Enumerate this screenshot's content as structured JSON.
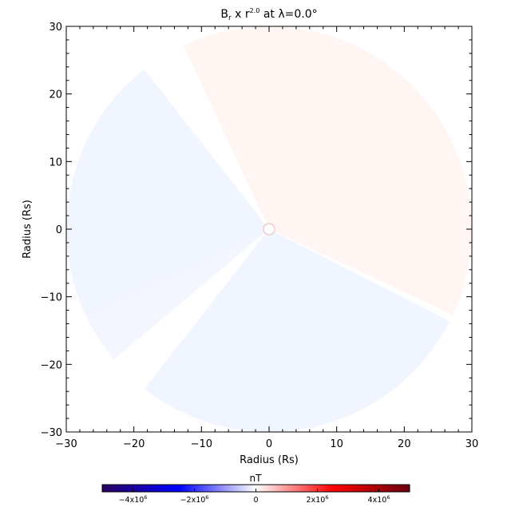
{
  "chart_data": {
    "type": "heatmap",
    "title": {
      "base": "B",
      "sub": "r",
      "mid": " x r",
      "sup": "2.0",
      "tail": " at λ=0.0°"
    },
    "xlabel": "Radius (Rs)",
    "ylabel": "Radius (Rs)",
    "xlim": [
      -30,
      30
    ],
    "ylim": [
      -30,
      30
    ],
    "xticks": [
      -30,
      -20,
      -10,
      0,
      10,
      20,
      30
    ],
    "yticks": [
      -30,
      -20,
      -10,
      0,
      10,
      20,
      30
    ],
    "grid": false,
    "data_radius": 30,
    "sectors": [
      {
        "name": "positive-sector",
        "start_deg": -25,
        "end_deg": 115,
        "color": "#fff6f3"
      },
      {
        "name": "negative-sector-upper-left",
        "start_deg": 128,
        "end_deg": 205,
        "color": "#f1f5ff"
      },
      {
        "name": "negative-sector-lower",
        "start_deg": 232,
        "end_deg": 333,
        "color": "#f1f5ff"
      },
      {
        "name": "negative-sector-lower-left",
        "start_deg": 205,
        "end_deg": 220,
        "color": "#f3f6ff"
      }
    ],
    "colorbar": {
      "label": "nT",
      "min": -5000000,
      "max": 5000000,
      "ticks": [
        {
          "value": -4000000,
          "label": "−4x10",
          "exp": "6"
        },
        {
          "value": -2000000,
          "label": "−2x10",
          "exp": "6"
        },
        {
          "value": 0,
          "label": "0",
          "exp": ""
        },
        {
          "value": 2000000,
          "label": "2x10",
          "exp": "6"
        },
        {
          "value": 4000000,
          "label": "4x10",
          "exp": "6"
        }
      ],
      "colors": [
        "#2a0060",
        "#0000ff",
        "#ffffff",
        "#ff0000",
        "#6a0010"
      ]
    }
  }
}
